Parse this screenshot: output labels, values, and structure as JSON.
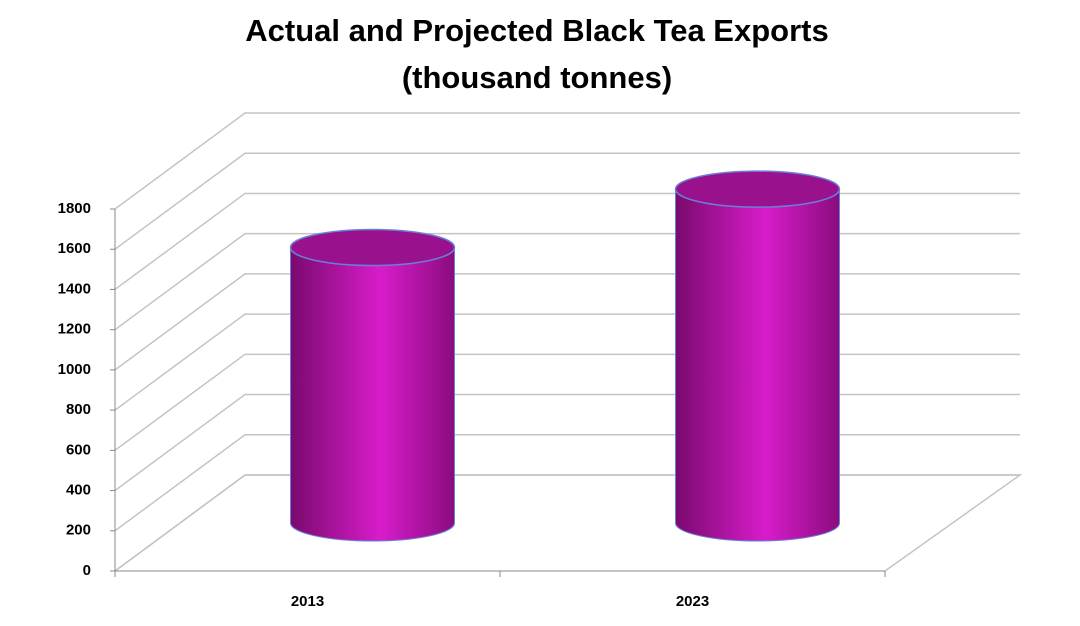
{
  "chart_data": {
    "type": "cylinder",
    "title": "Actual and Projected Black Tea Exports",
    "subtitle": "(thousand tonnes)",
    "categories": [
      "2013",
      "2023"
    ],
    "values": [
      1370,
      1660
    ],
    "color": "#c816b8",
    "ylim": [
      0,
      1800
    ],
    "yticks": [
      0,
      200,
      400,
      600,
      800,
      1000,
      1200,
      1400,
      1600,
      1800
    ],
    "grid": true
  }
}
